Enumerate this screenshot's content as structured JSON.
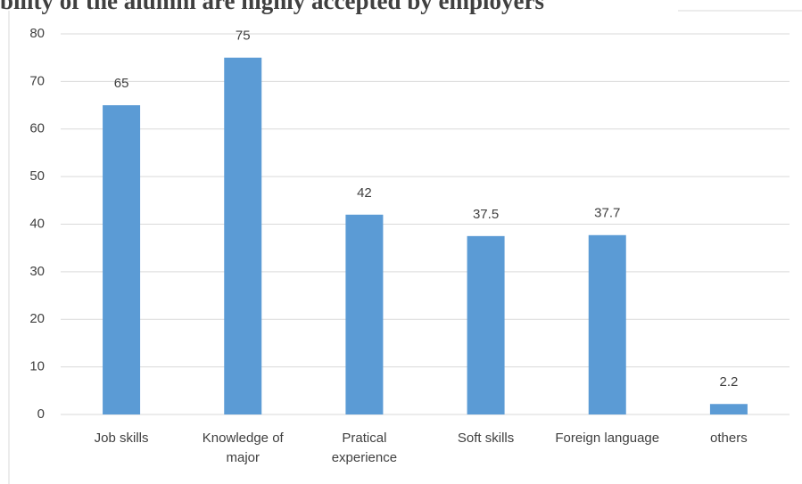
{
  "chart_data": {
    "type": "bar",
    "title": "bility of the alumni are highly accepted by employers",
    "categories": [
      "Job skills",
      "Knowledge of major",
      "Pratical experience",
      "Soft skills",
      "Foreign language",
      "others"
    ],
    "values": [
      65,
      75,
      42,
      37.5,
      37.7,
      2.2
    ],
    "color": "#5b9bd5",
    "ylim": [
      0,
      80
    ],
    "yticks": [
      0,
      10,
      20,
      30,
      40,
      50,
      60,
      70,
      80
    ],
    "grid": true
  }
}
